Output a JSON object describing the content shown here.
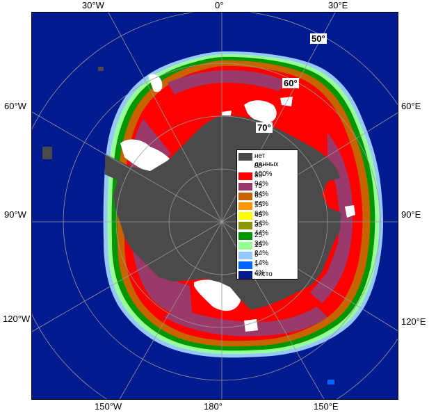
{
  "top_labels": {
    "w30": "30°W",
    "zero": "0°",
    "e30": "30°E"
  },
  "bottom_labels": {
    "w150": "150°W",
    "d180": "180°",
    "e150": "150°E"
  },
  "left_labels": {
    "w60": "60°W",
    "w90": "90°W",
    "w120": "120°W"
  },
  "right_labels": {
    "e60": "60°E",
    "e90": "90°E",
    "e120": "120°E"
  },
  "lat_labels": {
    "l50": "50°",
    "l60": "60°",
    "l70": "70°"
  },
  "legend": [
    {
      "label": "нет данных",
      "color": "#4a4a4a"
    },
    {
      "label": "95-100%",
      "color": "#ffffff"
    },
    {
      "label": "85-94%",
      "color": "#ff0000"
    },
    {
      "label": "75-84%",
      "color": "#9a3a6a"
    },
    {
      "label": "65-74%",
      "color": "#c86400"
    },
    {
      "label": "55-64%",
      "color": "#ff9600"
    },
    {
      "label": "45-54%",
      "color": "#ffff00"
    },
    {
      "label": "35-44%",
      "color": "#8c9600"
    },
    {
      "label": "25-34%",
      "color": "#009600"
    },
    {
      "label": "15-24%",
      "color": "#96ff96"
    },
    {
      "label": "5-14%",
      "color": "#96c8ff"
    },
    {
      "label": "1-4%",
      "color": "#0064ff"
    },
    {
      "label": "чисто",
      "color": "#001a8f"
    }
  ],
  "colors": {
    "open_water": "#001a8f",
    "land_nodata": "#4a4a4a",
    "ice_95_100": "#ffffff",
    "ice_85_94": "#ff0000",
    "ice_75_84": "#9a3a6a",
    "ice_65_74": "#c86400",
    "ice_55_64": "#ff9600",
    "edge_green": "#009600",
    "edge_light": "#96ff96",
    "edge_blue": "#96c8ff",
    "grid": "#9a9a9a"
  }
}
